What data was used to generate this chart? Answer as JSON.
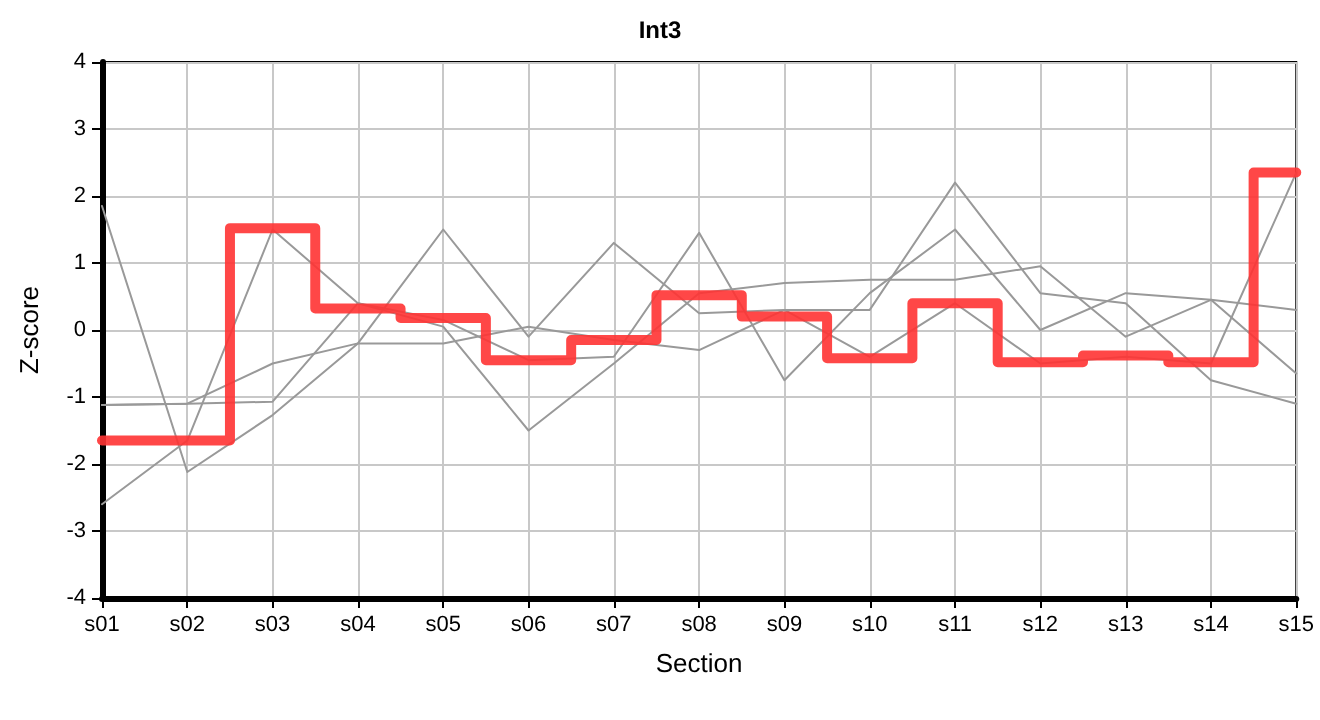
{
  "chart_data": {
    "type": "line",
    "title": "Int3",
    "xlabel": "Section",
    "ylabel": "Z-score",
    "categories": [
      "s01",
      "s02",
      "s03",
      "s04",
      "s05",
      "s06",
      "s07",
      "s08",
      "s09",
      "s10",
      "s11",
      "s12",
      "s13",
      "s14",
      "s15"
    ],
    "ylim": [
      -4,
      4
    ],
    "yticks": [
      -4,
      -3,
      -2,
      -1,
      0,
      1,
      2,
      3,
      4
    ],
    "grid": true,
    "marker": "none",
    "series": [
      {
        "color": "#999999",
        "values": [
          1.85,
          -2.12,
          -1.27,
          -0.2,
          1.5,
          -0.1,
          1.3,
          0.25,
          0.3,
          0.3,
          2.2,
          0.55,
          0.4,
          -0.75,
          -1.1
        ]
      },
      {
        "color": "#999999",
        "values": [
          -2.6,
          -1.65,
          1.5,
          0.4,
          0.05,
          -1.5,
          -0.5,
          0.55,
          0.7,
          0.75,
          0.75,
          0.95,
          -0.1,
          0.45,
          0.3
        ]
      },
      {
        "color": "#999999",
        "values": [
          -1.12,
          -1.1,
          -1.07,
          0.4,
          0.15,
          -0.45,
          -0.4,
          1.45,
          -0.75,
          0.55,
          1.5,
          0.0,
          0.55,
          0.45,
          -0.65
        ]
      },
      {
        "color": "#999999",
        "values": [
          -1.12,
          -1.1,
          -0.5,
          -0.2,
          -0.2,
          0.05,
          -0.15,
          -0.3,
          0.3,
          -0.4,
          0.4,
          -0.5,
          -0.4,
          -0.5,
          2.35
        ]
      },
      {
        "type": "step",
        "color": "#ff3333",
        "values": [
          -1.65,
          -1.65,
          1.52,
          0.32,
          0.18,
          -0.45,
          -0.15,
          0.52,
          0.2,
          -0.42,
          0.4,
          -0.48,
          -0.38,
          -0.48,
          2.35
        ]
      }
    ]
  }
}
